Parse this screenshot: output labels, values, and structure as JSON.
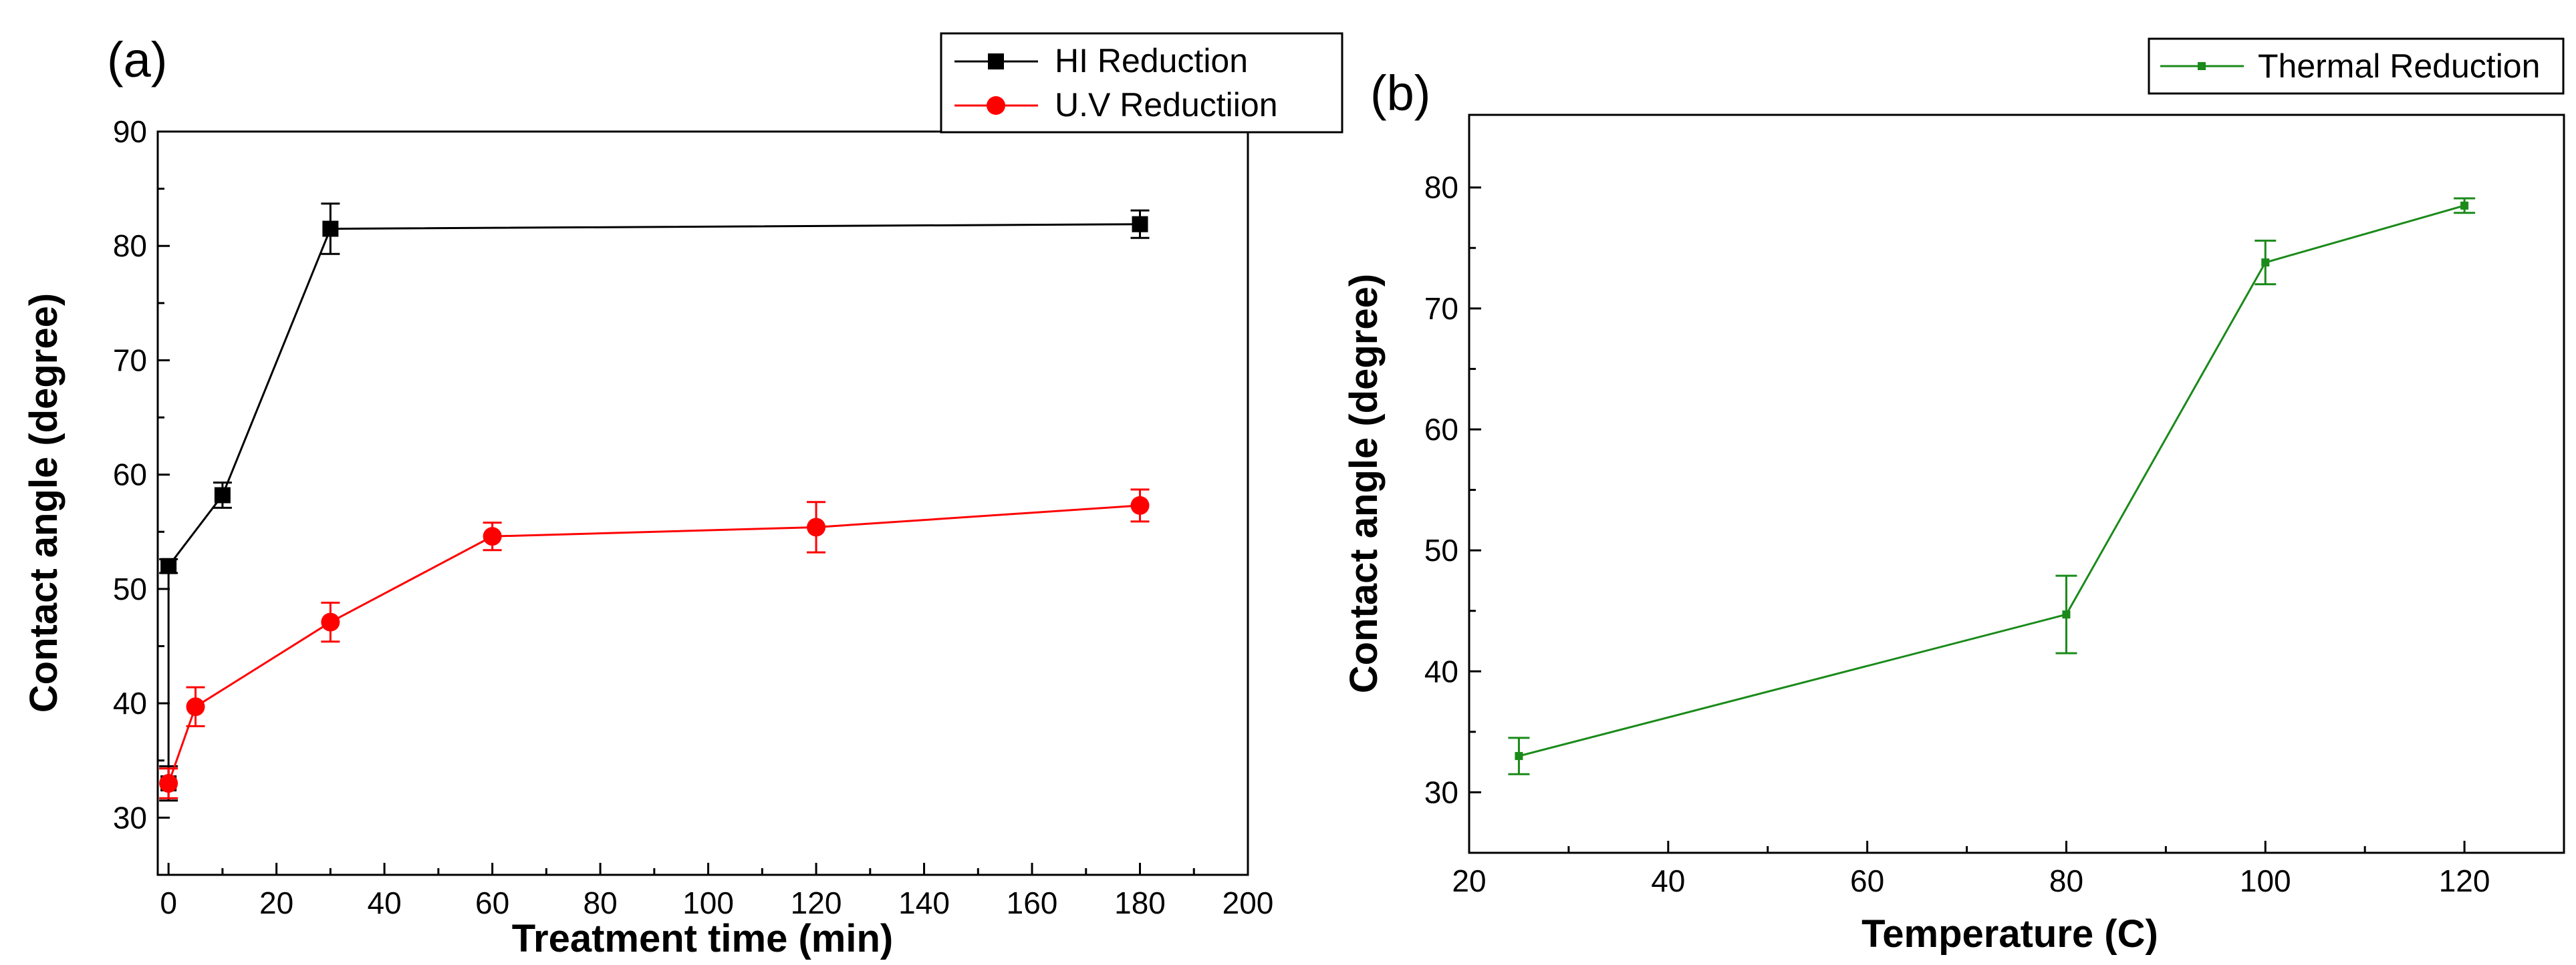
{
  "chart_data": [
    {
      "type": "line",
      "panel_label": "(a)",
      "xlabel": "Treatment time (min)",
      "ylabel": "Contact angle (degree)",
      "xlim": [
        -2,
        200
      ],
      "ylim": [
        25,
        90
      ],
      "xticks": [
        0,
        20,
        40,
        60,
        80,
        100,
        120,
        140,
        160,
        180,
        200
      ],
      "yticks": [
        30,
        40,
        50,
        60,
        70,
        80,
        90
      ],
      "grid": false,
      "legend": "top-right, outside plot",
      "series": [
        {
          "name": "HI Reduction",
          "color": "#000000",
          "marker": "square",
          "x": [
            0,
            0,
            10,
            30,
            180
          ],
          "y": [
            33,
            52,
            58.2,
            81.5,
            81.9
          ],
          "err": [
            1.5,
            0.6,
            1.1,
            2.2,
            1.2
          ]
        },
        {
          "name": "U.V Reductiion",
          "color": "#ff0000",
          "marker": "circle",
          "x": [
            0,
            5,
            30,
            60,
            120,
            180
          ],
          "y": [
            33,
            39.7,
            47.1,
            54.6,
            55.4,
            57.3
          ],
          "err": [
            1.3,
            1.7,
            1.7,
            1.2,
            2.2,
            1.4
          ]
        }
      ]
    },
    {
      "type": "line",
      "panel_label": "(b)",
      "xlabel": "Temperature (C)",
      "ylabel": "Contact angle (degree)",
      "xlim": [
        20,
        130
      ],
      "ylim": [
        25,
        86
      ],
      "xticks": [
        20,
        40,
        60,
        80,
        100,
        120
      ],
      "yticks": [
        30,
        40,
        50,
        60,
        70,
        80
      ],
      "grid": false,
      "legend": "top-right, outside plot",
      "series": [
        {
          "name": "Thermal Reduction",
          "color": "#1a8a1a",
          "marker": "square",
          "x": [
            25,
            80,
            100,
            120
          ],
          "y": [
            33,
            44.7,
            73.8,
            78.5
          ],
          "err": [
            1.5,
            3.2,
            1.8,
            0.6
          ]
        }
      ]
    }
  ]
}
